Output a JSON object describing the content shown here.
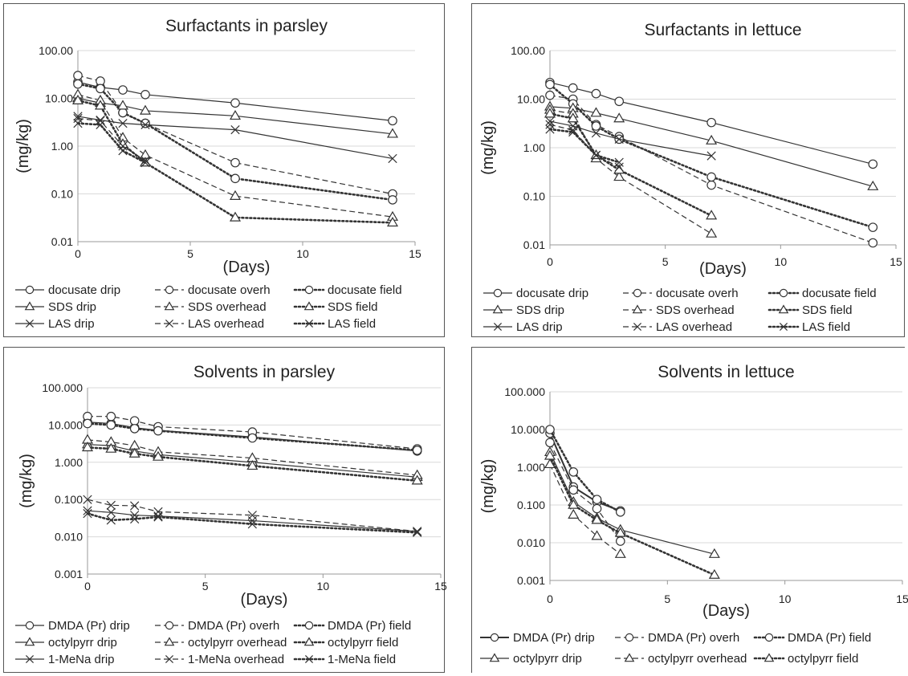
{
  "chart_data": [
    {
      "type": "line",
      "title": "Surfactants in parsley",
      "xlabel": "(Days)",
      "ylabel": "(mg/kg)",
      "yscale": "log",
      "ylim": [
        0.01,
        100
      ],
      "xlim": [
        0,
        15
      ],
      "xticks": [
        "0",
        "5",
        "10",
        "15"
      ],
      "yticks": [
        "0.01",
        "0.10",
        "1.00",
        "10.00",
        "100.00"
      ],
      "grid": true,
      "legend_position": "bottom",
      "series": [
        {
          "name": "docusate drip",
          "marker": "circle",
          "line": "solid",
          "x": [
            0,
            1,
            2,
            3,
            7,
            14
          ],
          "y": [
            22,
            17,
            15,
            12,
            8,
            3.4
          ]
        },
        {
          "name": "docusate overh",
          "marker": "circle",
          "line": "dashed",
          "x": [
            0,
            1,
            2,
            3,
            7,
            14
          ],
          "y": [
            30,
            23,
            5,
            3,
            0.45,
            0.1
          ]
        },
        {
          "name": "docusate field",
          "marker": "circle",
          "line": "dotted",
          "x": [
            0,
            1,
            2,
            3,
            7,
            14
          ],
          "y": [
            20,
            16,
            5,
            3,
            0.21,
            0.075
          ]
        },
        {
          "name": "SDS drip",
          "marker": "triangle",
          "line": "solid",
          "x": [
            0,
            1,
            2,
            3,
            7,
            14
          ],
          "y": [
            10,
            8,
            7,
            5.5,
            4.3,
            1.8
          ]
        },
        {
          "name": "SDS overhead",
          "marker": "triangle",
          "line": "dashed",
          "x": [
            0,
            1,
            2,
            3,
            7,
            14
          ],
          "y": [
            12,
            9,
            1.5,
            0.65,
            0.09,
            0.033
          ]
        },
        {
          "name": "SDS field",
          "marker": "triangle",
          "line": "dotted",
          "x": [
            0,
            1,
            2,
            3,
            7,
            14
          ],
          "y": [
            9,
            7,
            1.1,
            0.45,
            0.032,
            0.025
          ]
        },
        {
          "name": "LAS drip",
          "marker": "x",
          "line": "solid",
          "x": [
            0,
            1,
            2,
            3,
            7,
            14
          ],
          "y": [
            4.2,
            3.5,
            3,
            2.8,
            2.2,
            0.55
          ]
        },
        {
          "name": "LAS overhead",
          "marker": "x",
          "line": "dashed",
          "x": [
            0,
            1,
            2,
            3
          ],
          "y": [
            3.8,
            3.4,
            1.0,
            0.5
          ]
        },
        {
          "name": "LAS field",
          "marker": "x",
          "line": "dotted",
          "x": [
            0,
            1,
            2,
            3
          ],
          "y": [
            3.0,
            2.8,
            0.8,
            0.45
          ]
        }
      ]
    },
    {
      "type": "line",
      "title": "Surfactants in lettuce",
      "xlabel": "(Days)",
      "ylabel": "(mg/kg)",
      "yscale": "log",
      "ylim": [
        0.01,
        100
      ],
      "xlim": [
        0,
        15
      ],
      "xticks": [
        "0",
        "5",
        "10",
        "15"
      ],
      "yticks": [
        "0.01",
        "0.10",
        "1.00",
        "10.00",
        "100.00"
      ],
      "grid": true,
      "legend_position": "bottom",
      "series": [
        {
          "name": "docusate drip",
          "marker": "circle",
          "line": "solid",
          "x": [
            0,
            1,
            2,
            3,
            7,
            14
          ],
          "y": [
            22,
            17,
            13,
            9,
            3.3,
            0.46
          ]
        },
        {
          "name": "docusate overh",
          "marker": "circle",
          "line": "dashed",
          "x": [
            0,
            1,
            2,
            3,
            7,
            14
          ],
          "y": [
            12,
            10,
            3,
            1.7,
            0.17,
            0.011
          ]
        },
        {
          "name": "docusate field",
          "marker": "circle",
          "line": "dotted",
          "x": [
            0,
            1,
            2,
            3,
            7,
            14
          ],
          "y": [
            20,
            8,
            2.8,
            1.5,
            0.25,
            0.023
          ]
        },
        {
          "name": "SDS drip",
          "marker": "triangle",
          "line": "solid",
          "x": [
            0,
            1,
            2,
            3,
            7,
            14
          ],
          "y": [
            7,
            6.5,
            5.2,
            4,
            1.4,
            0.16
          ]
        },
        {
          "name": "SDS overhead",
          "marker": "triangle",
          "line": "dashed",
          "x": [
            0,
            1,
            2,
            3,
            7
          ],
          "y": [
            6,
            5,
            0.6,
            0.25,
            0.017
          ]
        },
        {
          "name": "SDS field",
          "marker": "triangle",
          "line": "dotted",
          "x": [
            0,
            1,
            2,
            3,
            7
          ],
          "y": [
            5,
            4,
            0.7,
            0.35,
            0.04
          ]
        },
        {
          "name": "LAS drip",
          "marker": "x",
          "line": "solid",
          "x": [
            0,
            1,
            2,
            3,
            7
          ],
          "y": [
            3.5,
            2.8,
            2,
            1.5,
            0.68
          ]
        },
        {
          "name": "LAS overhead",
          "marker": "x",
          "line": "dashed",
          "x": [
            0,
            1,
            2,
            3
          ],
          "y": [
            3,
            2.3,
            0.7,
            0.4
          ]
        },
        {
          "name": "LAS field",
          "marker": "x",
          "line": "dotted",
          "x": [
            0,
            1,
            2,
            3
          ],
          "y": [
            2.4,
            2.1,
            0.7,
            0.5
          ]
        }
      ]
    },
    {
      "type": "line",
      "title": "Solvents in parsley",
      "xlabel": "(Days)",
      "ylabel": "(mg/kg)",
      "yscale": "log",
      "ylim": [
        0.001,
        100
      ],
      "xlim": [
        0,
        15
      ],
      "xticks": [
        "0",
        "5",
        "10",
        "15"
      ],
      "yticks": [
        "0.001",
        "0.010",
        "0.100",
        "1.000",
        "10.000",
        "100.000"
      ],
      "grid": true,
      "legend_position": "bottom",
      "series": [
        {
          "name": "DMDA (Pr) drip",
          "marker": "circle",
          "line": "solid",
          "x": [
            0,
            1,
            2,
            3,
            7,
            14
          ],
          "y": [
            12,
            11,
            8.5,
            7.2,
            4.8,
            2
          ]
        },
        {
          "name": "DMDA (Pr) overh",
          "marker": "circle",
          "line": "dashed",
          "x": [
            0,
            1,
            2,
            3,
            7,
            14
          ],
          "y": [
            17,
            17,
            13,
            9,
            6.5,
            2.3
          ]
        },
        {
          "name": "DMDA (Pr) field",
          "marker": "circle",
          "line": "dotted",
          "x": [
            0,
            1,
            2,
            3,
            7,
            14
          ],
          "y": [
            11,
            10,
            8,
            7,
            4.5,
            2.1
          ]
        },
        {
          "name": "octylpyrr drip",
          "marker": "triangle",
          "line": "solid",
          "x": [
            0,
            1,
            2,
            3,
            7,
            14
          ],
          "y": [
            3,
            2.8,
            2,
            1.6,
            1,
            0.4
          ]
        },
        {
          "name": "octylpyrr overhead",
          "marker": "triangle",
          "line": "dashed",
          "x": [
            0,
            1,
            2,
            3,
            7,
            14
          ],
          "y": [
            4,
            3.5,
            2.8,
            1.9,
            1.3,
            0.45
          ]
        },
        {
          "name": "octylpyrr field",
          "marker": "triangle",
          "line": "dotted",
          "x": [
            0,
            1,
            2,
            3,
            7,
            14
          ],
          "y": [
            2.5,
            2.3,
            1.7,
            1.4,
            0.8,
            0.32
          ]
        },
        {
          "name": "1-MeNa drip",
          "marker": "x",
          "line": "solid",
          "x": [
            0,
            1,
            2,
            3,
            7,
            14
          ],
          "y": [
            0.05,
            0.045,
            0.038,
            0.036,
            0.027,
            0.014
          ]
        },
        {
          "name": "1-MeNa overhead",
          "marker": "x",
          "line": "dashed",
          "x": [
            0,
            1,
            2,
            3,
            7,
            14
          ],
          "y": [
            0.1,
            0.07,
            0.068,
            0.047,
            0.038,
            0.014
          ]
        },
        {
          "name": "1-MeNa field",
          "marker": "x",
          "line": "dotted",
          "x": [
            0,
            1,
            2,
            3,
            7,
            14
          ],
          "y": [
            0.042,
            0.028,
            0.03,
            0.034,
            0.022,
            0.013
          ]
        }
      ]
    },
    {
      "type": "line",
      "title": "Solvents in lettuce",
      "xlabel": "(Days)",
      "ylabel": "(mg/kg)",
      "yscale": "log",
      "ylim": [
        0.001,
        100
      ],
      "xlim": [
        0,
        15
      ],
      "xticks": [
        "0",
        "5",
        "10",
        "15"
      ],
      "yticks": [
        "0.001",
        "0.010",
        "0.100",
        "1.000",
        "10.000",
        "100.000"
      ],
      "grid": true,
      "legend_position": "bottom",
      "series": [
        {
          "name": "DMDA (Pr) drip",
          "marker": "circle",
          "line": "solid-bold",
          "x": [
            0,
            1,
            2,
            3
          ],
          "y": [
            8,
            0.3,
            0.12,
            0.07
          ]
        },
        {
          "name": "DMDA (Pr) overh",
          "marker": "circle",
          "line": "dashed",
          "x": [
            0,
            1,
            2,
            3
          ],
          "y": [
            4.5,
            0.25,
            0.08,
            0.011
          ]
        },
        {
          "name": "DMDA (Pr) field",
          "marker": "circle",
          "line": "dotted",
          "x": [
            0,
            1,
            2,
            3
          ],
          "y": [
            10,
            0.75,
            0.14,
            0.065
          ]
        },
        {
          "name": "octylpyrr drip",
          "marker": "triangle",
          "line": "solid",
          "x": [
            0,
            1,
            2,
            3,
            7
          ],
          "y": [
            2.5,
            0.12,
            0.045,
            0.022,
            0.005
          ]
        },
        {
          "name": "octylpyrr overhead",
          "marker": "triangle",
          "line": "dashed",
          "x": [
            0,
            1,
            2,
            3
          ],
          "y": [
            1.2,
            0.055,
            0.015,
            0.005
          ]
        },
        {
          "name": "octylpyrr field",
          "marker": "triangle",
          "line": "dotted",
          "x": [
            0,
            1,
            2,
            3,
            7
          ],
          "y": [
            2,
            0.1,
            0.04,
            0.018,
            0.0014
          ]
        }
      ]
    }
  ]
}
